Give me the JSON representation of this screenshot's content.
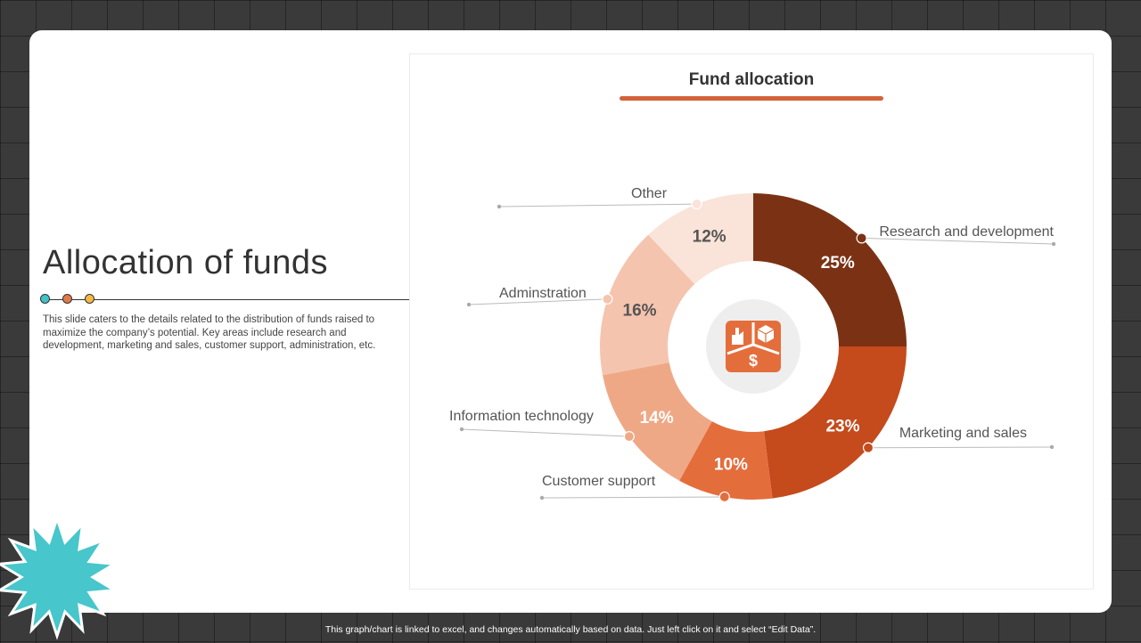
{
  "slide": {
    "title": "Allocation of funds",
    "description": "This slide caters to the details related to the distribution of funds raised to maximize the company’s potential. Key areas include research and development, marketing and sales, customer support, administration, etc.",
    "accent_dots": [
      "#3fc3c8",
      "#e07a4a",
      "#f5b942"
    ],
    "footer": "This graph/chart is linked to excel, and changes automatically based on data. Just left click on it and select “Edit Data”.",
    "center_icon": "funds-icon",
    "decoration_icon": "starburst-icon"
  },
  "chart_data": {
    "type": "pie",
    "title": "Fund allocation",
    "donut": true,
    "slices": [
      {
        "label": "Research and development",
        "value": 25,
        "value_label": "25%",
        "color": "#7b3214"
      },
      {
        "label": "Marketing and sales",
        "value": 23,
        "value_label": "23%",
        "color": "#c54a1c"
      },
      {
        "label": "Customer support",
        "value": 10,
        "value_label": "10%",
        "color": "#e46d3c"
      },
      {
        "label": "Information technology",
        "value": 14,
        "value_label": "14%",
        "color": "#efa886"
      },
      {
        "label": "Adminstration",
        "value": 16,
        "value_label": "16%",
        "color": "#f5c4ae"
      },
      {
        "label": "Other",
        "value": 12,
        "value_label": "12%",
        "color": "#fae3d8"
      }
    ]
  }
}
